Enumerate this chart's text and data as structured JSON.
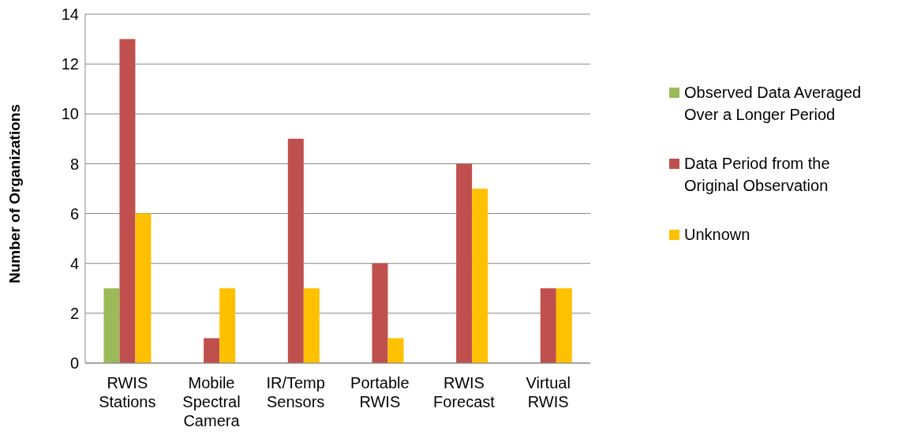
{
  "chart_data": {
    "type": "bar",
    "ylabel": "Number of Organizations",
    "categories": [
      "RWIS Stations",
      "Mobile Spectral Camera",
      "IR/Temp Sensors",
      "Portable RWIS",
      "RWIS Forecast",
      "Virtual RWIS"
    ],
    "series": [
      {
        "name": "Observed Data Averaged Over a Longer Period",
        "color": "#9bbb59",
        "values": [
          3,
          0,
          0,
          0,
          0,
          0
        ]
      },
      {
        "name": "Data Period from the Original Observation",
        "color": "#c0504d",
        "values": [
          13,
          1,
          9,
          4,
          8,
          3
        ]
      },
      {
        "name": "Unknown",
        "color": "#ffc000",
        "values": [
          6,
          3,
          3,
          1,
          7,
          3
        ]
      }
    ],
    "ylim": [
      0,
      14
    ],
    "yticks": [
      0,
      2,
      4,
      6,
      8,
      10,
      12,
      14
    ],
    "grid": "y",
    "legend": "right"
  }
}
